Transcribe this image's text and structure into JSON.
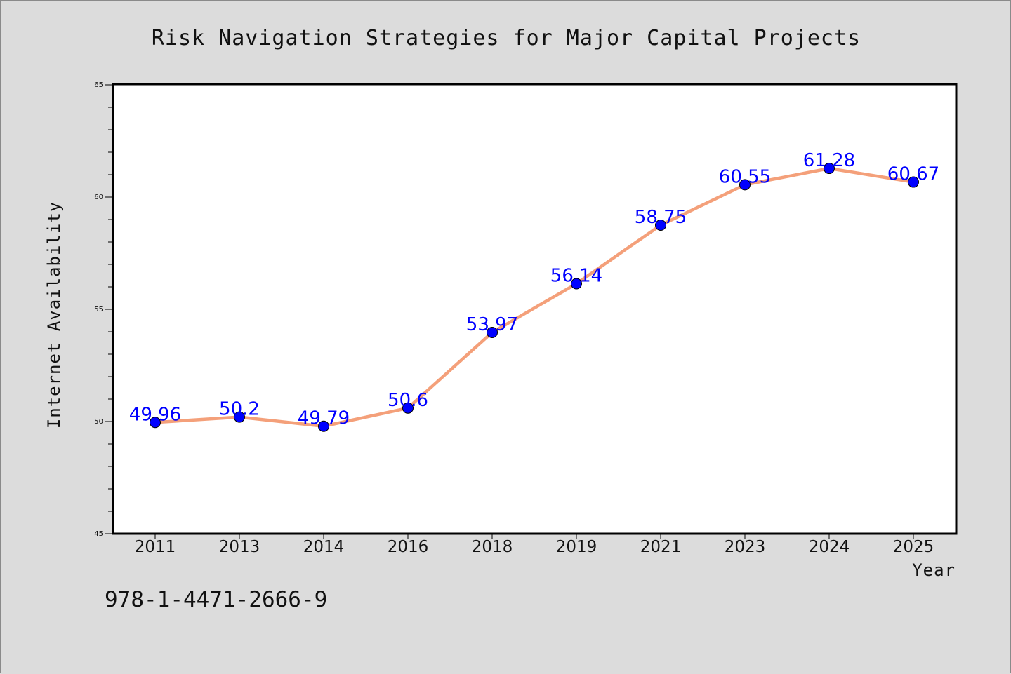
{
  "chart_data": {
    "type": "line",
    "title": "Risk Navigation Strategies for Major Capital Projects",
    "xlabel": "Year",
    "ylabel": "Internet Availability",
    "categories": [
      "2011",
      "2013",
      "2014",
      "2016",
      "2018",
      "2019",
      "2021",
      "2023",
      "2024",
      "2025"
    ],
    "series": [
      {
        "values": [
          49.96,
          50.2,
          49.79,
          50.6,
          53.97,
          56.14,
          58.75,
          60.55,
          61.28,
          60.67
        ],
        "data_labels": [
          "49.96",
          "50.2",
          "49.79",
          "50.6",
          "53.97",
          "56.14",
          "58.75",
          "60.55",
          "61.28",
          "60.67"
        ],
        "line_color": "#f4a07a",
        "marker_color": "#0000ff"
      }
    ],
    "ylim": [
      45,
      65
    ],
    "yticks": [
      "45",
      "50",
      "55",
      "60",
      "65"
    ],
    "grid": false
  },
  "footer_text": "978-1-4471-2666-9",
  "colors": {
    "background": "#dcdcdc",
    "plot_background": "#ffffff",
    "line": "#f4a07a",
    "marker": "#0000ff",
    "data_label": "#0000ff"
  }
}
